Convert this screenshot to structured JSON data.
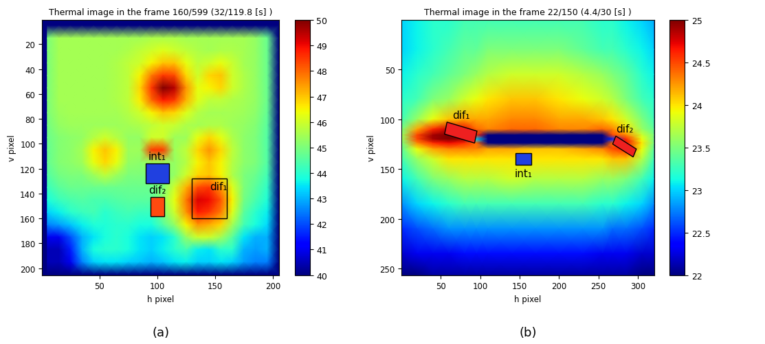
{
  "chart_data": [
    {
      "type": "heatmap",
      "title": "Thermal image in the frame 160/599 (32/119.8 [s] )",
      "x_label": "h pixel",
      "y_label": "v pixel",
      "caption": "(a)",
      "xlim": [
        0.5,
        205.5
      ],
      "ylim": [
        205.5,
        0.5
      ],
      "xticks": [
        50,
        100,
        150,
        200
      ],
      "yticks": [
        20,
        40,
        60,
        80,
        100,
        120,
        140,
        160,
        180,
        200
      ],
      "x": [
        5,
        15,
        25,
        35,
        45,
        55,
        65,
        75,
        85,
        95,
        105,
        115,
        125,
        135,
        145,
        155,
        165,
        175,
        185,
        195,
        205
      ],
      "y": [
        5,
        15,
        25,
        35,
        45,
        55,
        65,
        75,
        85,
        95,
        105,
        115,
        125,
        135,
        145,
        155,
        165,
        175,
        185,
        195,
        205
      ],
      "cells": [
        [
          40,
          40,
          40,
          40,
          40,
          40,
          40,
          40,
          40,
          40,
          40,
          40,
          40,
          40,
          40,
          40,
          40,
          40,
          40,
          40,
          40
        ],
        [
          45.0,
          45.5,
          45.5,
          45.5,
          45.5,
          45.5,
          45.5,
          45.5,
          45.5,
          45.6,
          45.6,
          45.6,
          45.5,
          45.5,
          45.5,
          45.5,
          45.5,
          45.5,
          45.3,
          44.8,
          40
        ],
        [
          45.0,
          45.5,
          45.5,
          45.5,
          45.5,
          45.5,
          45.5,
          45.6,
          45.8,
          46.0,
          46.2,
          46.0,
          45.8,
          45.6,
          45.5,
          45.6,
          45.6,
          45.5,
          45.3,
          44.8,
          40
        ],
        [
          45.0,
          45.5,
          45.5,
          45.5,
          45.5,
          45.5,
          45.6,
          45.8,
          46.0,
          46.5,
          47.0,
          47.0,
          46.3,
          45.8,
          46.0,
          46.3,
          45.9,
          45.5,
          45.3,
          44.8,
          40
        ],
        [
          45.0,
          45.5,
          45.5,
          45.5,
          45.5,
          45.5,
          45.6,
          45.8,
          46.5,
          47.8,
          48.5,
          48.3,
          46.8,
          46.0,
          46.8,
          47.0,
          46.0,
          45.6,
          45.3,
          44.8,
          40
        ],
        [
          45.0,
          45.5,
          45.5,
          45.5,
          45.5,
          45.5,
          45.6,
          45.8,
          46.8,
          48.5,
          50.0,
          49.5,
          47.5,
          46.3,
          46.5,
          46.8,
          46.0,
          45.6,
          45.3,
          44.8,
          40
        ],
        [
          45.0,
          45.5,
          45.5,
          45.5,
          45.5,
          45.5,
          45.6,
          45.8,
          46.6,
          48.0,
          48.8,
          48.5,
          47.2,
          46.2,
          45.8,
          45.8,
          45.6,
          45.5,
          45.3,
          44.8,
          40
        ],
        [
          45.0,
          45.4,
          45.5,
          45.5,
          45.5,
          45.5,
          45.5,
          45.7,
          46.0,
          46.5,
          47.0,
          46.8,
          46.2,
          45.7,
          45.5,
          45.5,
          45.5,
          45.4,
          45.2,
          44.7,
          40
        ],
        [
          44.9,
          45.3,
          45.4,
          45.4,
          45.4,
          45.4,
          45.4,
          45.5,
          45.6,
          45.8,
          46.0,
          45.9,
          45.6,
          45.5,
          45.6,
          45.6,
          45.4,
          45.3,
          45.1,
          44.6,
          40
        ],
        [
          44.8,
          45.1,
          45.2,
          45.3,
          45.7,
          46.0,
          45.7,
          45.3,
          45.3,
          46.0,
          46.0,
          45.4,
          45.4,
          46.3,
          46.8,
          46.3,
          45.6,
          45.2,
          45.0,
          44.5,
          40
        ],
        [
          44.7,
          45.1,
          45.2,
          45.5,
          46.5,
          47.0,
          46.5,
          45.4,
          45.4,
          48.5,
          48.5,
          45.4,
          45.8,
          46.8,
          47.5,
          46.8,
          45.8,
          45.2,
          45.0,
          44.5,
          40
        ],
        [
          44.7,
          45.1,
          45.2,
          45.4,
          46.3,
          46.8,
          46.3,
          45.3,
          45.2,
          45.4,
          45.4,
          45.3,
          45.7,
          46.5,
          47.0,
          46.5,
          45.7,
          45.2,
          45.0,
          44.5,
          40
        ],
        [
          44.5,
          44.9,
          45.0,
          45.0,
          45.4,
          45.8,
          45.4,
          45.0,
          45.0,
          45.0,
          45.0,
          45.3,
          46.0,
          46.8,
          47.0,
          46.5,
          45.6,
          45.0,
          44.8,
          44.3,
          40
        ],
        [
          44.2,
          44.6,
          44.8,
          44.8,
          44.8,
          44.8,
          44.8,
          44.8,
          44.8,
          44.8,
          45.0,
          46.0,
          47.2,
          48.3,
          48.5,
          47.5,
          46.2,
          45.0,
          44.6,
          44.1,
          40
        ],
        [
          43.8,
          44.2,
          44.4,
          44.5,
          44.4,
          44.4,
          44.5,
          44.6,
          44.6,
          44.6,
          45.3,
          46.3,
          47.8,
          49.2,
          49.0,
          48.2,
          46.5,
          44.9,
          44.4,
          43.9,
          40
        ],
        [
          43.3,
          43.6,
          44.0,
          44.2,
          44.3,
          44.0,
          44.2,
          44.3,
          44.2,
          44.2,
          45.0,
          46.0,
          47.5,
          48.8,
          48.5,
          47.8,
          46.2,
          44.6,
          44.0,
          43.6,
          40
        ],
        [
          42.5,
          42.8,
          43.2,
          43.6,
          43.9,
          43.9,
          44.0,
          44.0,
          43.8,
          43.8,
          44.5,
          45.3,
          46.5,
          47.5,
          47.3,
          46.8,
          45.5,
          44.3,
          43.8,
          43.4,
          40
        ],
        [
          41.0,
          41.0,
          42.0,
          43.0,
          43.5,
          43.8,
          44.0,
          43.8,
          43.5,
          43.3,
          43.5,
          44.0,
          45.3,
          46.0,
          46.0,
          45.5,
          44.6,
          43.5,
          43.0,
          43.0,
          40
        ],
        [
          40.5,
          40.5,
          41.5,
          43.0,
          43.8,
          44.0,
          44.0,
          43.8,
          43.5,
          43.3,
          43.6,
          44.0,
          44.3,
          43.6,
          43.5,
          44.0,
          44.0,
          43.0,
          42.8,
          43.0,
          40
        ],
        [
          40.5,
          40.5,
          41.0,
          42.5,
          43.3,
          43.5,
          43.5,
          43.3,
          43.2,
          43.0,
          43.2,
          43.5,
          43.6,
          43.3,
          43.3,
          43.5,
          43.3,
          42.8,
          42.5,
          42.5,
          40
        ],
        [
          40,
          40,
          40,
          40,
          40,
          40,
          40,
          40,
          40,
          40,
          40,
          40,
          40,
          40,
          40,
          40,
          40,
          40,
          40,
          40,
          40
        ]
      ],
      "colorbar": {
        "range": [
          40,
          50
        ],
        "ticks": [
          40,
          41,
          42,
          43,
          44,
          45,
          46,
          47,
          48,
          49,
          50
        ]
      },
      "regions": [
        {
          "label": "int₁",
          "corners": [
            [
              90,
              116
            ],
            [
              110,
              116
            ],
            [
              110,
              132
            ],
            [
              90,
              132
            ]
          ],
          "color": "#2040e0"
        },
        {
          "label": "dif₁",
          "corners": [
            [
              130,
              128
            ],
            [
              160,
              128
            ],
            [
              160,
              160
            ],
            [
              130,
              160
            ]
          ]
        },
        {
          "label": "dif₂",
          "corners": [
            [
              94,
              143
            ],
            [
              106,
              143
            ],
            [
              106,
              158
            ],
            [
              94,
              158
            ]
          ],
          "color": "#ff4a10"
        }
      ]
    },
    {
      "type": "heatmap",
      "title": "Thermal image in the frame 22/150 (4.4/30 [s] )",
      "x_label": "h pixel",
      "y_label": "v pixel",
      "caption": "(b)",
      "xlim": [
        0.5,
        320.5
      ],
      "ylim": [
        256.5,
        0.5
      ],
      "xticks": [
        50,
        100,
        150,
        200,
        250,
        300
      ],
      "yticks": [
        50,
        100,
        150,
        200,
        250
      ],
      "x": [
        1,
        20,
        40,
        60,
        80,
        95,
        110,
        140,
        170,
        200,
        230,
        255,
        268,
        285,
        305,
        320
      ],
      "y": [
        1,
        30,
        55,
        80,
        100,
        110,
        116,
        120,
        124,
        130,
        140,
        160,
        185,
        210,
        235,
        256
      ],
      "cells": [
        [
          23.0,
          23.1,
          23.2,
          23.2,
          23.3,
          23.3,
          23.3,
          23.3,
          23.3,
          23.3,
          23.3,
          23.2,
          23.2,
          23.1,
          23.0,
          22.9
        ],
        [
          23.0,
          23.1,
          23.2,
          23.3,
          23.4,
          23.4,
          23.5,
          23.5,
          23.5,
          23.5,
          23.4,
          23.3,
          23.3,
          23.2,
          23.1,
          23.0
        ],
        [
          23.1,
          23.2,
          23.3,
          23.4,
          23.5,
          23.6,
          23.7,
          23.8,
          23.8,
          23.8,
          23.7,
          23.6,
          23.5,
          23.4,
          23.2,
          23.1
        ],
        [
          23.2,
          23.3,
          23.5,
          23.6,
          23.8,
          23.9,
          24.0,
          24.1,
          24.1,
          24.0,
          23.9,
          23.8,
          23.7,
          23.5,
          23.3,
          23.2
        ],
        [
          23.3,
          23.6,
          23.9,
          24.1,
          24.2,
          24.2,
          24.2,
          24.3,
          24.3,
          24.2,
          24.2,
          24.1,
          24.0,
          23.8,
          23.5,
          23.3
        ],
        [
          23.5,
          24.2,
          24.6,
          24.8,
          24.7,
          24.4,
          24.3,
          24.4,
          24.4,
          24.3,
          24.3,
          24.4,
          24.3,
          24.0,
          23.6,
          23.4
        ],
        [
          23.6,
          24.5,
          24.9,
          25.0,
          24.9,
          24.6,
          21.5,
          21.5,
          21.6,
          21.5,
          21.5,
          21.6,
          24.5,
          24.3,
          23.8,
          23.5
        ],
        [
          23.6,
          24.5,
          24.9,
          25.0,
          24.9,
          23.0,
          21.5,
          21.5,
          21.5,
          21.5,
          21.5,
          21.5,
          22.5,
          24.6,
          23.9,
          23.5
        ],
        [
          23.5,
          24.3,
          24.6,
          24.7,
          24.6,
          24.4,
          21.6,
          21.6,
          21.6,
          21.6,
          21.6,
          21.8,
          24.4,
          24.7,
          24.0,
          23.5
        ],
        [
          23.4,
          23.9,
          24.2,
          24.3,
          24.3,
          24.3,
          24.2,
          24.2,
          24.1,
          24.1,
          24.2,
          24.3,
          24.5,
          24.6,
          23.9,
          23.4
        ],
        [
          23.3,
          23.6,
          23.8,
          24.0,
          24.0,
          24.0,
          24.0,
          24.0,
          24.0,
          24.0,
          24.0,
          24.0,
          24.1,
          24.1,
          23.7,
          23.3
        ],
        [
          23.1,
          23.3,
          23.5,
          23.6,
          23.7,
          23.7,
          23.7,
          23.8,
          23.7,
          23.7,
          23.7,
          23.6,
          23.6,
          23.5,
          23.3,
          23.1
        ],
        [
          22.8,
          23.0,
          23.1,
          23.2,
          23.3,
          23.3,
          23.3,
          23.3,
          23.3,
          23.3,
          23.3,
          23.2,
          23.2,
          23.1,
          23.0,
          22.8
        ],
        [
          22.5,
          22.6,
          22.7,
          22.8,
          22.8,
          22.8,
          22.8,
          22.8,
          22.8,
          22.8,
          22.8,
          22.8,
          22.7,
          22.7,
          22.6,
          22.5
        ],
        [
          22.2,
          22.3,
          22.3,
          22.3,
          22.4,
          22.4,
          22.4,
          22.4,
          22.4,
          22.4,
          22.4,
          22.3,
          22.3,
          22.3,
          22.2,
          22.2
        ],
        [
          22.0,
          22.0,
          22.1,
          22.1,
          22.1,
          22.1,
          22.1,
          22.1,
          22.1,
          22.1,
          22.1,
          22.1,
          22.1,
          22.1,
          22.0,
          22.0
        ]
      ],
      "colorbar": {
        "range": [
          22,
          25
        ],
        "ticks": [
          22,
          22.5,
          23,
          23.5,
          24,
          24.5,
          25
        ]
      },
      "regions": [
        {
          "label": "dif₁",
          "corners": [
            [
              58,
              103
            ],
            [
              96,
              112
            ],
            [
              93,
              124
            ],
            [
              55,
              115
            ]
          ],
          "color": "#ee2020"
        },
        {
          "label": "dif₂",
          "corners": [
            [
              272,
              117
            ],
            [
              298,
              130
            ],
            [
              294,
              138
            ],
            [
              268,
              125
            ]
          ],
          "color": "#ee2020"
        },
        {
          "label": "int₁",
          "corners": [
            [
              145,
              134
            ],
            [
              165,
              134
            ],
            [
              165,
              146
            ],
            [
              145,
              146
            ]
          ],
          "color": "#2040e0"
        }
      ]
    }
  ]
}
